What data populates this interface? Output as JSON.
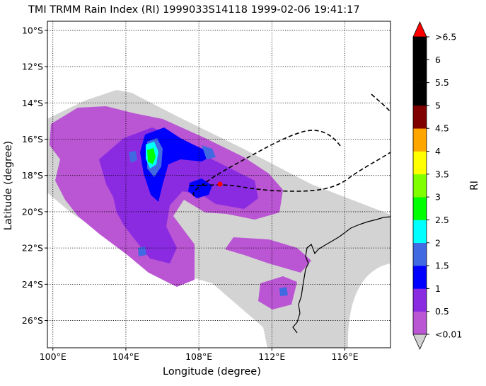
{
  "title": "TMI TRMM Rain Index (RI) 1999033S14118 1999-02-06 19:41:17",
  "xlabel": "Longitude (degree)",
  "ylabel": "Latitude (degree)",
  "colorbar_label": "RI",
  "map": {
    "lon_range": [
      99.7,
      118.5
    ],
    "lat_range": [
      -27.5,
      -9.5
    ],
    "lon_ticks": [
      {
        "value": 100,
        "label": "100°E"
      },
      {
        "value": 104,
        "label": "104°E"
      },
      {
        "value": 108,
        "label": "108°E"
      },
      {
        "value": 112,
        "label": "112°E"
      },
      {
        "value": 116,
        "label": "116°E"
      }
    ],
    "lat_ticks": [
      {
        "value": -10,
        "label": "10°S"
      },
      {
        "value": -12,
        "label": "12°S"
      },
      {
        "value": -14,
        "label": "14°S"
      },
      {
        "value": -16,
        "label": "16°S"
      },
      {
        "value": -18,
        "label": "18°S"
      },
      {
        "value": -20,
        "label": "20°S"
      },
      {
        "value": -22,
        "label": "22°S"
      },
      {
        "value": -24,
        "label": "24°S"
      },
      {
        "value": -26,
        "label": "26°S"
      }
    ],
    "gridlines": true,
    "swath_color": "#d3d3d3",
    "storm_center": {
      "lon": 109.2,
      "lat": -18.5,
      "color": "#ff0000"
    },
    "track_style": "dashed black",
    "coastline": "Western Australia"
  },
  "colorbar": {
    "levels": [
      {
        "label": "<0.01",
        "color": "#ba55d3"
      },
      {
        "label": "0.5",
        "color": "#8a2be2"
      },
      {
        "label": "1",
        "color": "#0000ff"
      },
      {
        "label": "1.5",
        "color": "#4169e1"
      },
      {
        "label": "2",
        "color": "#00ffff"
      },
      {
        "label": "2.5",
        "color": "#00ff00"
      },
      {
        "label": "3",
        "color": "#7fff00"
      },
      {
        "label": "3.5",
        "color": "#ffff00"
      },
      {
        "label": "4",
        "color": "#ffa500"
      },
      {
        "label": "4.5",
        "color": "#800000"
      },
      {
        "label": "5",
        "color": "#000000"
      },
      {
        "label": "5.5",
        "color": "#000000"
      },
      {
        "label": "6",
        "color": "#000000"
      },
      {
        "label": ">6.5",
        "color": "#ff0000"
      }
    ],
    "over_color": "#ff0000",
    "under_color": "#d3d3d3"
  }
}
